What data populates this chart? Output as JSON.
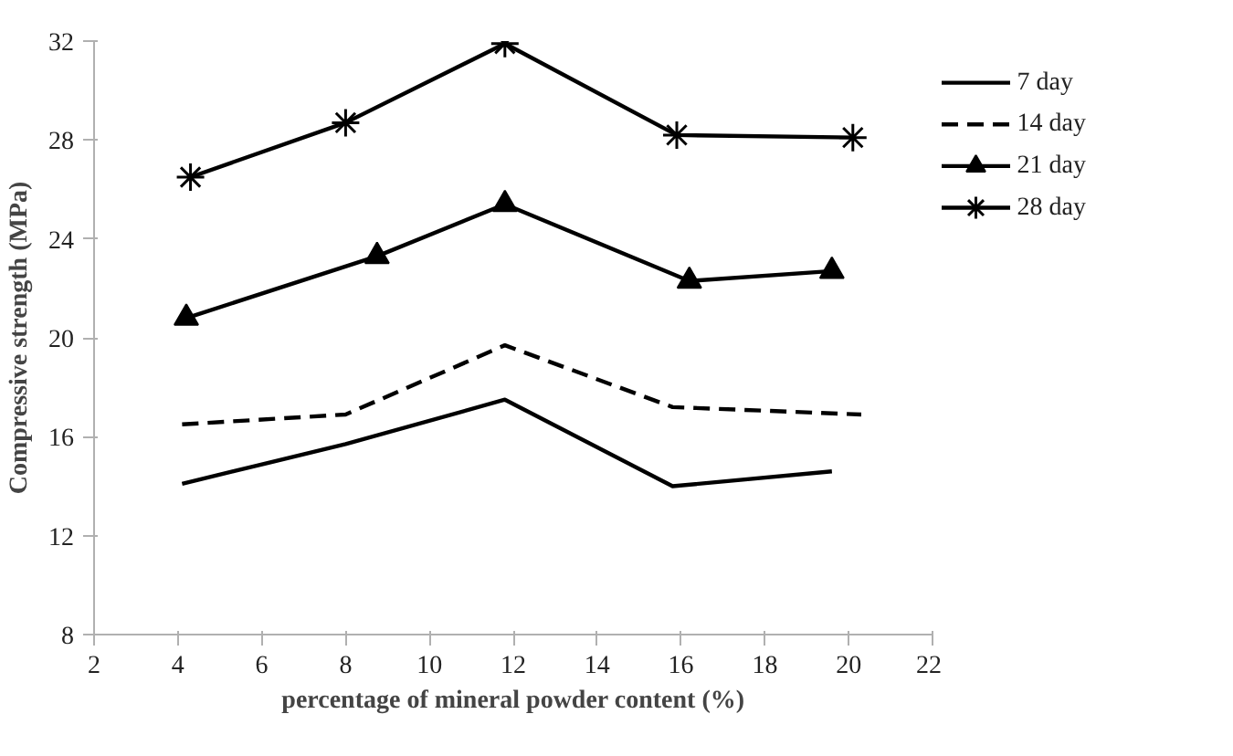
{
  "chart_data": {
    "type": "line",
    "xlabel": "percentage of mineral powder content (%)",
    "ylabel": "Compressive strength (MPa)",
    "xlim": [
      2,
      22
    ],
    "xticks": [
      2,
      4,
      6,
      8,
      10,
      12,
      14,
      16,
      18,
      20,
      22
    ],
    "ylim": [
      8,
      32
    ],
    "yticks": [
      8,
      12,
      16,
      20,
      24,
      28,
      32
    ],
    "grid": false,
    "legend": "top right",
    "series": [
      {
        "name": "7 day",
        "color": "#000000",
        "x": [
          4.1,
          8.0,
          11.8,
          15.8,
          19.6
        ],
        "values": [
          14.1,
          15.7,
          17.5,
          14.0,
          14.6
        ],
        "marker": "none",
        "line_style": "solid"
      },
      {
        "name": "14 day",
        "color": "#000000",
        "x": [
          4.1,
          8.0,
          11.8,
          15.8,
          20.3
        ],
        "values": [
          16.5,
          16.9,
          19.7,
          17.2,
          16.9
        ],
        "marker": "none",
        "line_style": "dashed"
      },
      {
        "name": "21 day",
        "color": "#000000",
        "x": [
          4.2,
          8.75,
          11.8,
          16.2,
          19.6
        ],
        "values": [
          20.8,
          23.3,
          25.4,
          22.3,
          22.7
        ],
        "marker": "triangle",
        "line_style": "solid"
      },
      {
        "name": "28 day",
        "color": "#000000",
        "x": [
          4.3,
          8.0,
          11.8,
          15.9,
          20.1
        ],
        "values": [
          26.5,
          28.7,
          31.9,
          28.2,
          28.1
        ],
        "marker": "cross",
        "line_style": "solid"
      }
    ]
  }
}
